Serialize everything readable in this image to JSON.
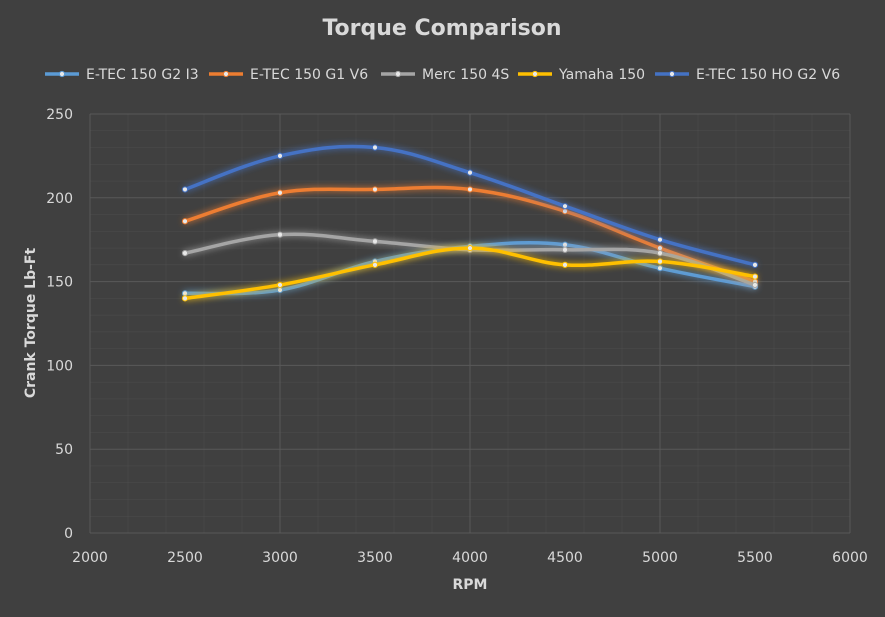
{
  "chart_data": {
    "type": "line",
    "title": "Torque Comparison",
    "xlabel": "RPM",
    "ylabel": "Crank Torque Lb-Ft",
    "xlim": [
      2000,
      6000
    ],
    "ylim": [
      0,
      250
    ],
    "x_ticks": [
      2000,
      2500,
      3000,
      3500,
      4000,
      4500,
      5000,
      5500,
      6000
    ],
    "y_ticks": [
      0,
      50,
      100,
      150,
      200,
      250
    ],
    "grid": true,
    "smooth": true,
    "legend_position": "top",
    "x": [
      2500,
      3000,
      3500,
      4000,
      4500,
      5000,
      5500
    ],
    "series": [
      {
        "name": "E-TEC 150 G2 I3",
        "color": "#5b9bd5",
        "values": [
          143,
          145,
          162,
          171,
          172,
          158,
          147
        ]
      },
      {
        "name": "E-TEC 150 G1 V6",
        "color": "#ed7d31",
        "values": [
          186,
          203,
          205,
          205,
          192,
          170,
          150
        ]
      },
      {
        "name": "Merc 150 4S",
        "color": "#a5a5a5",
        "values": [
          167,
          178,
          174,
          169,
          169,
          167,
          148
        ]
      },
      {
        "name": "Yamaha 150",
        "color": "#ffc000",
        "values": [
          140,
          148,
          160,
          170,
          160,
          162,
          153
        ]
      },
      {
        "name": "E-TEC 150 HO G2 V6",
        "color": "#4472c4",
        "values": [
          205,
          225,
          230,
          215,
          195,
          175,
          160
        ]
      }
    ]
  },
  "colors": {
    "background": "#404040",
    "gridline": "#595959",
    "text": "#d9d9d9"
  }
}
